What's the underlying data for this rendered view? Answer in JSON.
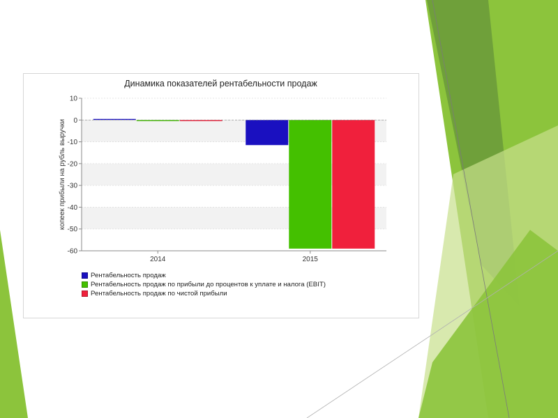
{
  "colors": {
    "green_dark": "#6a9a3a",
    "green_mid": "#8cc43c",
    "green_light": "#c8e08c",
    "grid_band": "#f2f2f2",
    "axis": "#888888"
  },
  "chart_data": {
    "type": "bar",
    "title": "Динамика показателей рентабельности продаж",
    "ylabel": "копеек прибыли на рубль выручки",
    "xlabel": "",
    "categories": [
      "2014",
      "2015"
    ],
    "ylim": [
      -60,
      10
    ],
    "yticks": [
      10,
      0,
      -10,
      -20,
      -30,
      -40,
      -50,
      -60
    ],
    "grid": "horizontal bands",
    "legend_position": "bottom-left",
    "series": [
      {
        "name": "Рентабельность продаж",
        "color": "#1a10c0",
        "values": [
          0.5,
          -11.5
        ]
      },
      {
        "name": "Рентабельность продаж по прибыли до процентов к уплате и налога (EBIT)",
        "color": "#44c000",
        "values": [
          -0.2,
          -59
        ]
      },
      {
        "name": "Рентабельность продаж по чистой прибыли",
        "color": "#f0203c",
        "values": [
          -0.2,
          -59
        ]
      }
    ]
  }
}
